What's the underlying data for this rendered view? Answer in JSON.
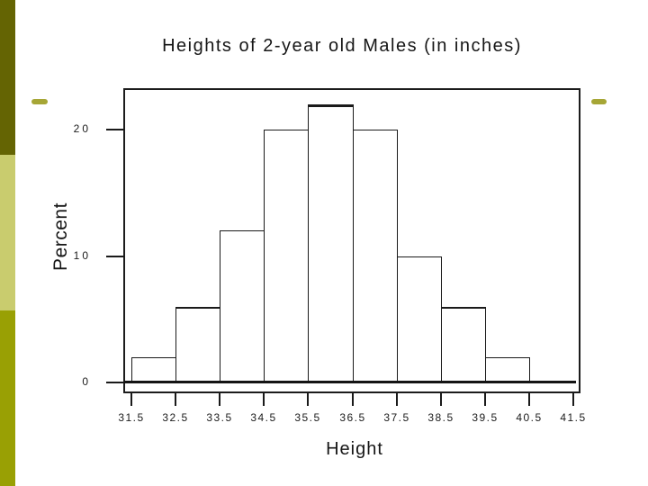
{
  "slide": {
    "background": "#ffffff"
  },
  "chart_data": {
    "type": "bar",
    "subtype": "histogram",
    "title": "Heights of 2-year old Males (in inches)",
    "xlabel": "Height",
    "ylabel": "Percent",
    "x_tick_values": [
      31.5,
      32.5,
      33.5,
      34.5,
      35.5,
      36.5,
      37.5,
      38.5,
      39.5,
      40.5,
      41.5
    ],
    "x_tick_labels": [
      "31.5",
      "32.5",
      "33.5",
      "34.5",
      "35.5",
      "36.5",
      "37.5",
      "38.5",
      "39.5",
      "40.5",
      "41.5"
    ],
    "y_tick_values": [
      0,
      10,
      20
    ],
    "y_tick_labels": [
      "0",
      "10",
      "20"
    ],
    "xlim": [
      31.5,
      41.5
    ],
    "ylim": [
      0,
      23
    ],
    "grid": false,
    "legend_position": "none",
    "bar_fill": "#ffffff",
    "bar_outline": "#1a1a1a",
    "bins": [
      {
        "from": 31.5,
        "to": 32.5,
        "percent": 2
      },
      {
        "from": 32.5,
        "to": 33.5,
        "percent": 6
      },
      {
        "from": 33.5,
        "to": 34.5,
        "percent": 12
      },
      {
        "from": 34.5,
        "to": 35.5,
        "percent": 20
      },
      {
        "from": 35.5,
        "to": 36.5,
        "percent": 22
      },
      {
        "from": 36.5,
        "to": 37.5,
        "percent": 20
      },
      {
        "from": 37.5,
        "to": 38.5,
        "percent": 10
      },
      {
        "from": 38.5,
        "to": 39.5,
        "percent": 6
      },
      {
        "from": 39.5,
        "to": 40.5,
        "percent": 2
      },
      {
        "from": 40.5,
        "to": 41.5,
        "percent": 0
      }
    ]
  },
  "decorations": {
    "left_stripe_segments": [
      {
        "color": "#646403"
      },
      {
        "color": "#c9cc6e"
      },
      {
        "color": "#99a004"
      }
    ],
    "left_dash_color": "#a6a636",
    "right_dash_color": "#a6a636"
  },
  "colors": {
    "axis": "#1a1a1a",
    "text": "#161616",
    "background": "#ffffff"
  }
}
